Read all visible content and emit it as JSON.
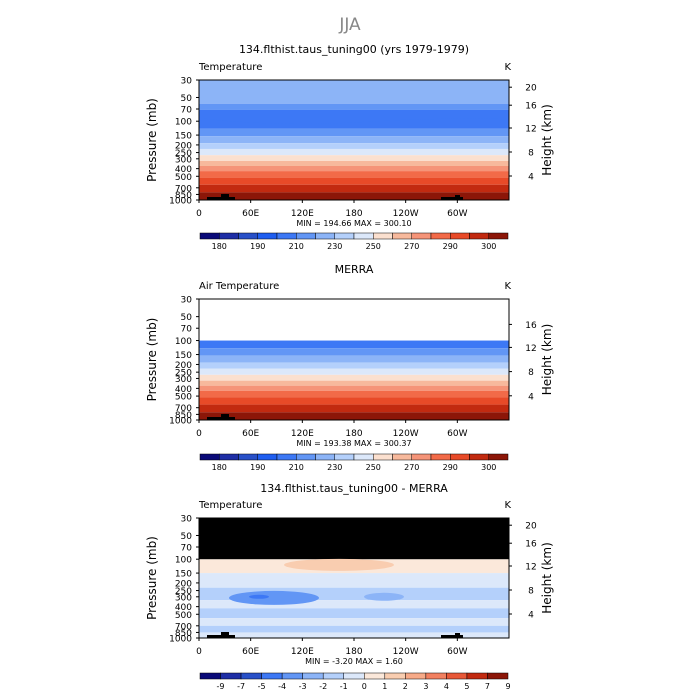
{
  "page_title": "JJA",
  "chart_data": [
    {
      "type": "heatmap",
      "title": "134.flthist.taus_tuning00 (yrs 1979-1979)",
      "variable_label": "Temperature",
      "units": "K",
      "ylabel": "Pressure (mb)",
      "ylabel_right": "Height (km)",
      "pressure_ticks": [
        "30",
        "50",
        "70",
        "100",
        "150",
        "200",
        "250",
        "300",
        "400",
        "500",
        "700",
        "850",
        "1000"
      ],
      "height_ticks": [
        "20",
        "16",
        "12",
        "8",
        "4"
      ],
      "lon_ticks": [
        "0",
        "60E",
        "120E",
        "180",
        "120W",
        "60W"
      ],
      "stats": "MIN = 194.66   MAX = 300.10",
      "min": 194.66,
      "max": 300.1,
      "levels": [
        180,
        185,
        190,
        200,
        210,
        220,
        230,
        240,
        250,
        260,
        270,
        280,
        290,
        295,
        300
      ],
      "colorbar_labels": [
        "180",
        "190",
        "210",
        "230",
        "250",
        "270",
        "290",
        "300"
      ]
    },
    {
      "type": "heatmap",
      "title": "MERRA",
      "variable_label": "Air Temperature",
      "units": "K",
      "ylabel": "Pressure (mb)",
      "ylabel_right": "Height (km)",
      "pressure_ticks": [
        "30",
        "50",
        "70",
        "100",
        "150",
        "200",
        "250",
        "300",
        "400",
        "500",
        "700",
        "850",
        "1000"
      ],
      "height_ticks": [
        "16",
        "12",
        "8",
        "4"
      ],
      "lon_ticks": [
        "0",
        "60E",
        "120E",
        "180",
        "120W",
        "60W"
      ],
      "stats": "MIN = 193.38   MAX = 300.37",
      "min": 193.38,
      "max": 300.37,
      "levels": [
        180,
        185,
        190,
        200,
        210,
        220,
        230,
        240,
        250,
        260,
        270,
        280,
        290,
        295,
        300
      ],
      "colorbar_labels": [
        "180",
        "190",
        "210",
        "230",
        "250",
        "270",
        "290",
        "300"
      ]
    },
    {
      "type": "heatmap",
      "title": "134.flthist.taus_tuning00 - MERRA",
      "variable_label": "Temperature",
      "units": "K",
      "ylabel": "Pressure (mb)",
      "ylabel_right": "Height (km)",
      "pressure_ticks": [
        "30",
        "50",
        "70",
        "100",
        "150",
        "200",
        "250",
        "300",
        "400",
        "500",
        "700",
        "850",
        "1000"
      ],
      "height_ticks": [
        "20",
        "16",
        "12",
        "8",
        "4"
      ],
      "lon_ticks": [
        "0",
        "60E",
        "120E",
        "180",
        "120W",
        "60W"
      ],
      "stats": "MIN =  -3.20   MAX =   1.60",
      "min": -3.2,
      "max": 1.6,
      "levels": [
        -9,
        -7,
        -5,
        -4,
        -3,
        -2,
        -1,
        0,
        1,
        2,
        3,
        4,
        5,
        7,
        9
      ],
      "colorbar_labels": [
        "-9",
        "-7",
        "-5",
        "-4",
        "-3",
        "-2",
        "-1",
        "0",
        "1",
        "2",
        "3",
        "4",
        "5",
        "7",
        "9"
      ]
    }
  ],
  "colors": {
    "temp_scale": [
      "#0a0a78",
      "#1e2ea6",
      "#2850c8",
      "#1f5ef0",
      "#3d78f5",
      "#6296f5",
      "#8cb4f7",
      "#b4d0fb",
      "#dce8fa",
      "#fbe0cf",
      "#f7b99c",
      "#f59478",
      "#f26a48",
      "#e84a28",
      "#c22a10",
      "#8c1608"
    ],
    "diff_scale": [
      "#0a0a78",
      "#1e2ea6",
      "#2850c8",
      "#3d78f5",
      "#6296f5",
      "#8cb4f7",
      "#b4d0fb",
      "#dce8fa",
      "#fbe8da",
      "#f9cdb0",
      "#f7aa88",
      "#f28060",
      "#e85838",
      "#c22a10",
      "#8c1608"
    ],
    "missing": "#000000"
  }
}
